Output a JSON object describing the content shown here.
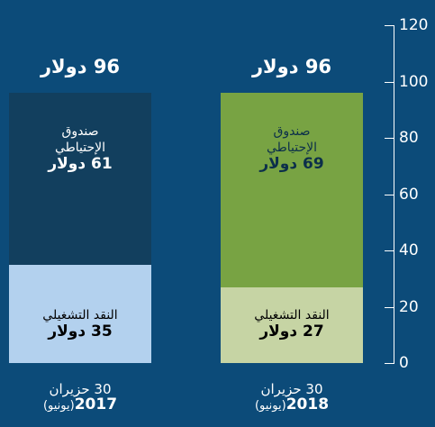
{
  "chart_data": {
    "type": "stacked_bar",
    "categories": [
      "2017",
      "2018"
    ],
    "category_lines": [
      [
        "30 حزيران",
        "(يونيو)"
      ],
      [
        "30 حزيران",
        "(يونيو)"
      ]
    ],
    "totals": [
      96,
      96
    ],
    "total_labels": [
      "96 دولار",
      "96 دولار"
    ],
    "series": [
      {
        "name": "النقد التشغيلي",
        "colors": [
          "#b3d1ee",
          "#c6d4a4"
        ],
        "values": [
          35,
          27
        ],
        "value_labels": [
          "35 دولار",
          "27 دولار"
        ]
      },
      {
        "name": "صندوق الإحتياطي",
        "colors": [
          "#123f5e",
          "#78a343"
        ],
        "values": [
          61,
          69
        ],
        "value_labels": [
          "61 دولار",
          "69 دولار"
        ]
      }
    ],
    "ylim": [
      0,
      120
    ],
    "yticks": [
      0,
      20,
      40,
      60,
      80,
      100,
      120
    ]
  }
}
